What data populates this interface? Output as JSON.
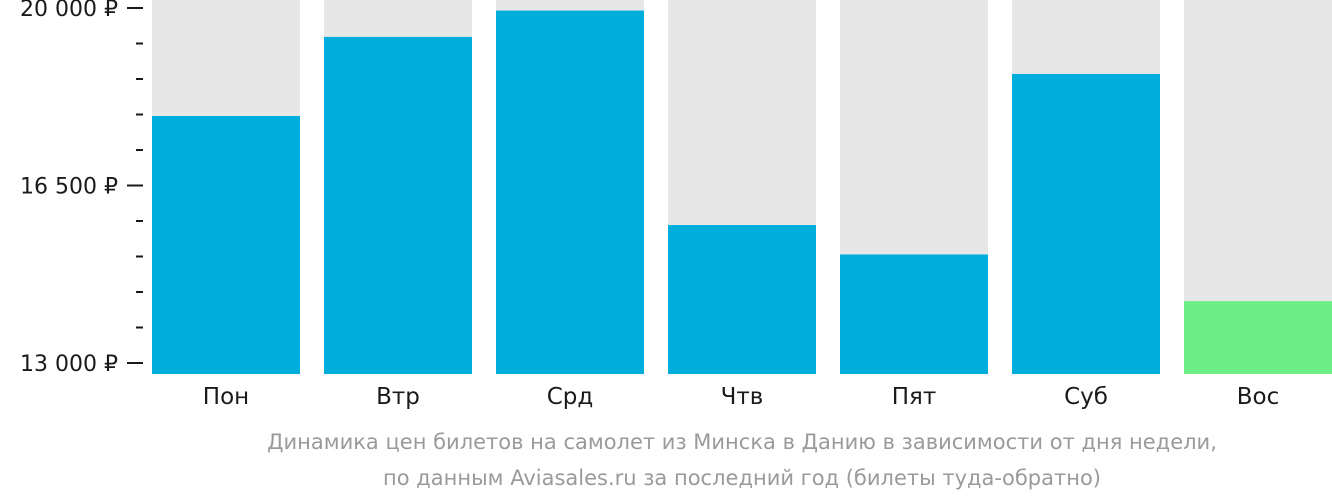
{
  "chart_data": {
    "type": "bar",
    "categories": [
      "Пон",
      "Втр",
      "Срд",
      "Чтв",
      "Пят",
      "Суб",
      "Вос"
    ],
    "values": [
      17870,
      19430,
      19950,
      15720,
      15140,
      18700,
      14220
    ],
    "ylim": [
      13000,
      20000
    ],
    "y_ticks": [
      {
        "value": 20000,
        "label": "20 000 ₽"
      },
      {
        "value": 16500,
        "label": "16 500 ₽"
      },
      {
        "value": 13000,
        "label": "13 000 ₽"
      }
    ],
    "minor_tick_step": 700,
    "lowest_category": "Вос",
    "colors": {
      "bar": "#00aedb",
      "lowest_bar": "#6ded85",
      "background_bar": "#e7e7e7",
      "axis": "#1a1a1a"
    },
    "caption": [
      "Динамика цен билетов на самолет из Минска в Данию в зависимости от дня недели,",
      "по данным Aviasales.ru за последний год (билеты туда-обратно)"
    ]
  }
}
